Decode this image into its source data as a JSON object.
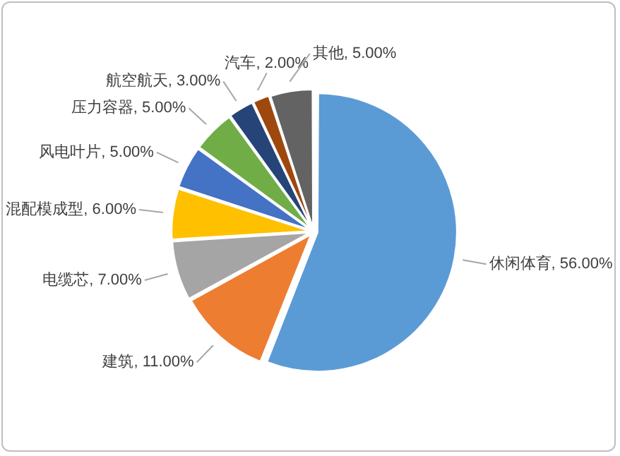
{
  "chart_data": {
    "type": "pie",
    "categories": [
      "休闲体育",
      "建筑",
      "电缆芯",
      "混配模成型",
      "风电叶片",
      "压力容器",
      "航空航天",
      "汽车",
      "其他"
    ],
    "values": [
      56,
      11,
      7,
      6,
      5,
      5,
      3,
      2,
      5
    ],
    "value_labels": [
      "56.00%",
      "11.00%",
      "7.00%",
      "6.00%",
      "5.00%",
      "5.00%",
      "3.00%",
      "2.00%",
      "5.00%"
    ],
    "colors": [
      "#5b9bd5",
      "#ed7d31",
      "#a5a5a5",
      "#ffc000",
      "#4472c4",
      "#70ad47",
      "#264478",
      "#9e480e",
      "#636363"
    ],
    "legend": false
  }
}
